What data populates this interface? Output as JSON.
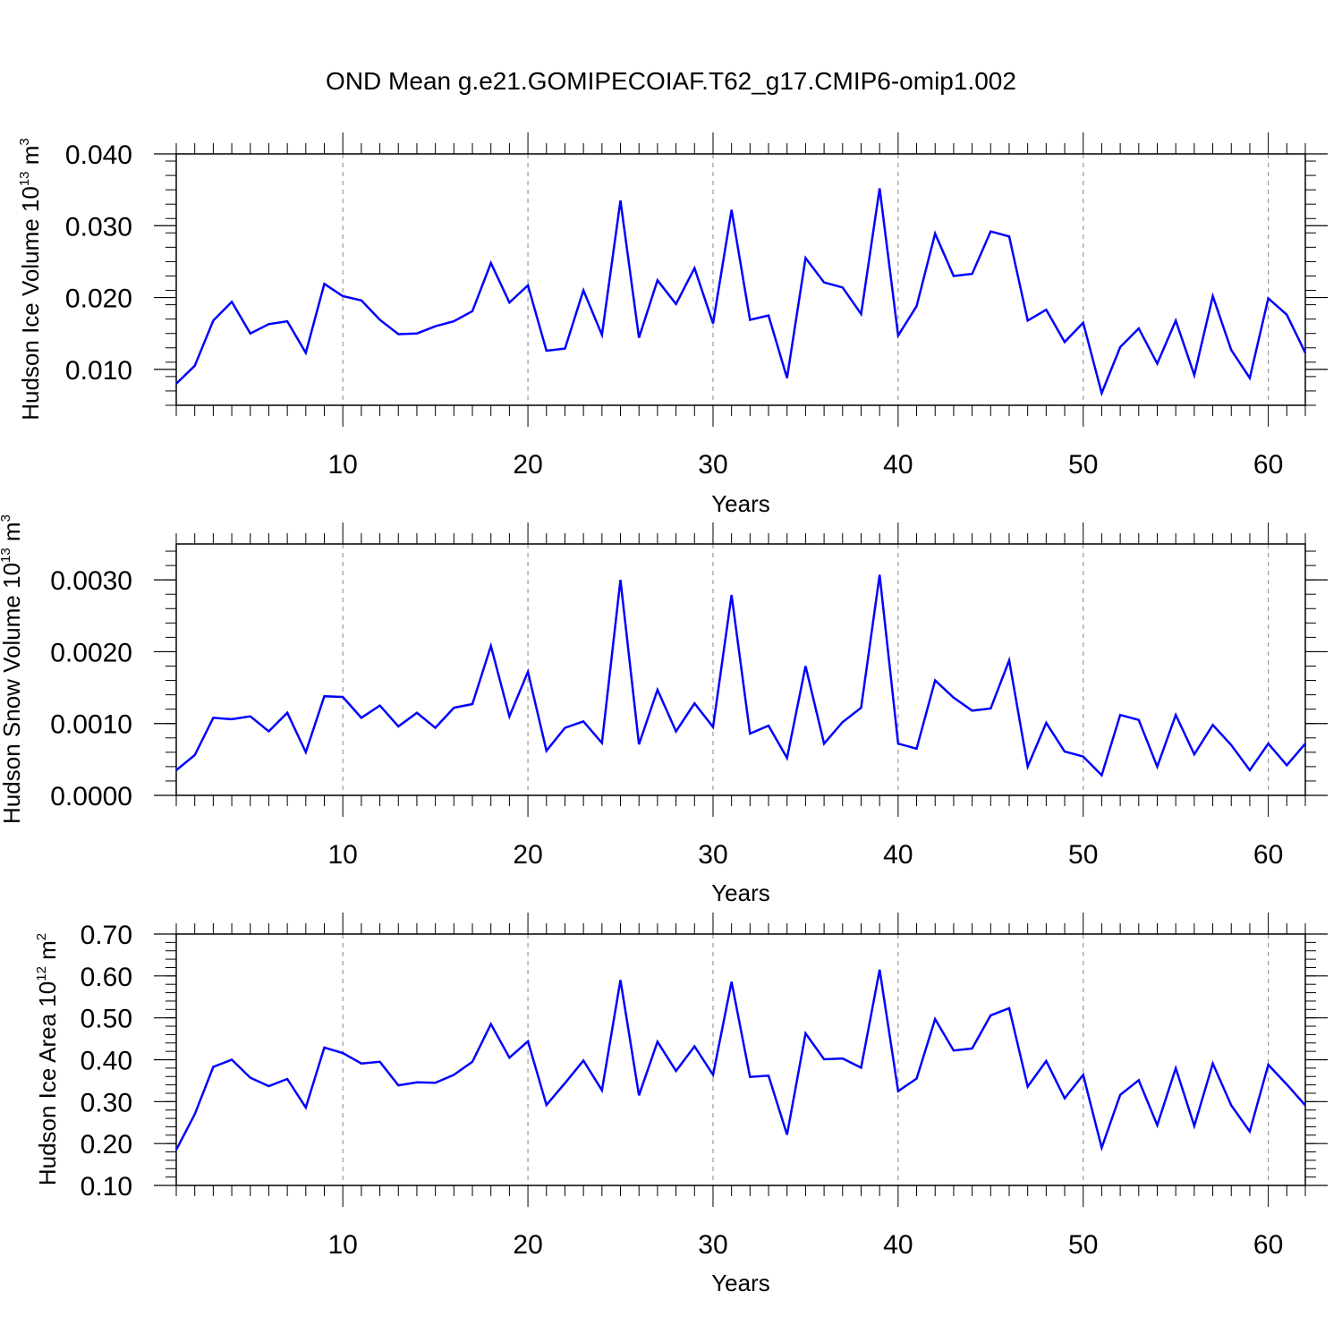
{
  "title": "OND Mean g.e21.GOMIPECOIAF.T62_g17.CMIP6-omip1.002",
  "colors": {
    "line": "#0000ff",
    "axis": "#000000",
    "grid": "#999999"
  },
  "chart_data": [
    {
      "type": "line",
      "ylabel": {
        "prefix": "Hudson Ice Volume 10",
        "exponent": "13",
        "unit": " m",
        "unit_exponent": "3"
      },
      "xlabel": "Years",
      "xlim": [
        1,
        62
      ],
      "ylim": [
        0.005,
        0.04
      ],
      "yticks": [
        0.01,
        0.02,
        0.03,
        0.04
      ],
      "ytick_labels": [
        "0.010",
        "0.020",
        "0.030",
        "0.040"
      ],
      "xticks": [
        10,
        20,
        30,
        40,
        50,
        60
      ],
      "xtick_labels": [
        "10",
        "20",
        "30",
        "40",
        "50",
        "60"
      ],
      "grid": "vertical dashed at major x ticks",
      "series": [
        {
          "x_start": 1,
          "values": [
            0.008,
            0.0105,
            0.0168,
            0.0194,
            0.015,
            0.0163,
            0.0167,
            0.0123,
            0.0219,
            0.0202,
            0.0196,
            0.0169,
            0.0149,
            0.015,
            0.016,
            0.0167,
            0.0181,
            0.0248,
            0.0193,
            0.0217,
            0.0126,
            0.0129,
            0.021,
            0.0148,
            0.0335,
            0.0144,
            0.0224,
            0.0191,
            0.0241,
            0.0164,
            0.0322,
            0.0169,
            0.0175,
            0.0088,
            0.0255,
            0.0221,
            0.0214,
            0.0177,
            0.0352,
            0.0147,
            0.0188,
            0.0289,
            0.023,
            0.0233,
            0.0292,
            0.0285,
            0.0168,
            0.0183,
            0.0138,
            0.0165,
            0.0067,
            0.0131,
            0.0157,
            0.0108,
            0.0168,
            0.0092,
            0.0202,
            0.0127,
            0.0088,
            0.0199,
            0.0176,
            0.0123
          ]
        }
      ]
    },
    {
      "type": "line",
      "ylabel": {
        "prefix": "Hudson Snow Volume 10",
        "exponent": "13",
        "unit": " m",
        "unit_exponent": "3"
      },
      "xlabel": "Years",
      "xlim": [
        1,
        62
      ],
      "ylim": [
        0.0,
        0.0035
      ],
      "yticks": [
        0.0,
        0.001,
        0.002,
        0.003
      ],
      "ytick_labels": [
        "0.0000",
        "0.0010",
        "0.0020",
        "0.0030"
      ],
      "xticks": [
        10,
        20,
        30,
        40,
        50,
        60
      ],
      "xtick_labels": [
        "10",
        "20",
        "30",
        "40",
        "50",
        "60"
      ],
      "grid": "vertical dashed at major x ticks",
      "series": [
        {
          "x_start": 1,
          "values": [
            0.00035,
            0.00056,
            0.00108,
            0.00106,
            0.0011,
            0.00089,
            0.00115,
            0.0006,
            0.00138,
            0.00137,
            0.00108,
            0.00125,
            0.00096,
            0.00115,
            0.00094,
            0.00122,
            0.00127,
            0.00208,
            0.0011,
            0.00172,
            0.00062,
            0.00094,
            0.00103,
            0.00073,
            0.003,
            0.00071,
            0.00147,
            0.00089,
            0.00128,
            0.00095,
            0.00279,
            0.00086,
            0.00097,
            0.00052,
            0.0018,
            0.00072,
            0.00102,
            0.00122,
            0.00307,
            0.00072,
            0.00065,
            0.0016,
            0.00136,
            0.00118,
            0.00121,
            0.00188,
            0.0004,
            0.00101,
            0.00061,
            0.00054,
            0.00028,
            0.00112,
            0.00105,
            0.0004,
            0.00112,
            0.00057,
            0.00098,
            0.0007,
            0.00035,
            0.00072,
            0.00042,
            0.00072
          ]
        }
      ]
    },
    {
      "type": "line",
      "ylabel": {
        "prefix": "Hudson Ice Area 10",
        "exponent": "12",
        "unit": " m",
        "unit_exponent": "2"
      },
      "xlabel": "Years",
      "xlim": [
        1,
        62
      ],
      "ylim": [
        0.1,
        0.7
      ],
      "yticks": [
        0.1,
        0.2,
        0.3,
        0.4,
        0.5,
        0.6,
        0.7
      ],
      "ytick_labels": [
        "0.10",
        "0.20",
        "0.30",
        "0.40",
        "0.50",
        "0.60",
        "0.70"
      ],
      "xticks": [
        10,
        20,
        30,
        40,
        50,
        60
      ],
      "xtick_labels": [
        "10",
        "20",
        "30",
        "40",
        "50",
        "60"
      ],
      "grid": "vertical dashed at major x ticks",
      "series": [
        {
          "x_start": 1,
          "values": [
            0.185,
            0.27,
            0.383,
            0.4,
            0.357,
            0.337,
            0.354,
            0.286,
            0.429,
            0.416,
            0.391,
            0.395,
            0.339,
            0.346,
            0.345,
            0.364,
            0.395,
            0.485,
            0.405,
            0.444,
            0.292,
            0.344,
            0.398,
            0.327,
            0.59,
            0.315,
            0.443,
            0.373,
            0.432,
            0.364,
            0.586,
            0.359,
            0.362,
            0.221,
            0.463,
            0.401,
            0.403,
            0.381,
            0.615,
            0.325,
            0.355,
            0.497,
            0.422,
            0.427,
            0.506,
            0.523,
            0.336,
            0.397,
            0.308,
            0.364,
            0.19,
            0.316,
            0.351,
            0.244,
            0.38,
            0.242,
            0.391,
            0.291,
            0.229,
            0.388,
            0.341,
            0.291
          ]
        }
      ]
    }
  ]
}
